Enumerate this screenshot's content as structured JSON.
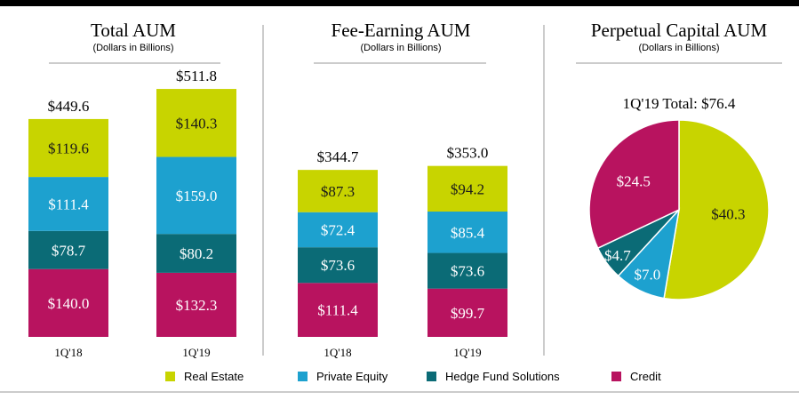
{
  "colors": {
    "real_estate": "#c8d400",
    "private_equity": "#1da1cf",
    "hedge_fund": "#0b6b76",
    "credit": "#b8135f",
    "divider": "#9a9a9a",
    "top_rule": "#000000"
  },
  "legend": [
    {
      "label": "Real Estate",
      "color_key": "real_estate"
    },
    {
      "label": "Private Equity",
      "color_key": "private_equity"
    },
    {
      "label": "Hedge Fund Solutions",
      "color_key": "hedge_fund"
    },
    {
      "label": "Credit",
      "color_key": "credit"
    }
  ],
  "chart_data": [
    {
      "type": "bar",
      "stacked": true,
      "title": "Total AUM",
      "subtitle": "(Dollars in Billions)",
      "categories": [
        "1Q'18",
        "1Q'19"
      ],
      "totals": [
        "$449.6",
        "$511.8"
      ],
      "series": [
        {
          "name": "Credit",
          "color_key": "credit",
          "values": [
            140.0,
            132.3
          ],
          "labels": [
            "$140.0",
            "$132.3"
          ]
        },
        {
          "name": "Hedge Fund Solutions",
          "color_key": "hedge_fund",
          "values": [
            78.7,
            80.2
          ],
          "labels": [
            "$78.7",
            "$80.2"
          ]
        },
        {
          "name": "Private Equity",
          "color_key": "private_equity",
          "values": [
            111.4,
            159.0
          ],
          "labels": [
            "$111.4",
            "$159.0"
          ]
        },
        {
          "name": "Real Estate",
          "color_key": "real_estate",
          "values": [
            119.6,
            140.3
          ],
          "labels": [
            "$119.6",
            "$140.3"
          ]
        }
      ]
    },
    {
      "type": "bar",
      "stacked": true,
      "title": "Fee-Earning AUM",
      "subtitle": "(Dollars in Billions)",
      "categories": [
        "1Q'18",
        "1Q'19"
      ],
      "totals": [
        "$344.7",
        "$353.0"
      ],
      "series": [
        {
          "name": "Credit",
          "color_key": "credit",
          "values": [
            111.4,
            99.7
          ],
          "labels": [
            "$111.4",
            "$99.7"
          ]
        },
        {
          "name": "Hedge Fund Solutions",
          "color_key": "hedge_fund",
          "values": [
            73.6,
            73.6
          ],
          "labels": [
            "$73.6",
            "$73.6"
          ]
        },
        {
          "name": "Private Equity",
          "color_key": "private_equity",
          "values": [
            72.4,
            85.4
          ],
          "labels": [
            "$72.4",
            "$85.4"
          ]
        },
        {
          "name": "Real Estate",
          "color_key": "real_estate",
          "values": [
            87.3,
            94.2
          ],
          "labels": [
            "$87.3",
            "$94.2"
          ]
        }
      ]
    },
    {
      "type": "pie",
      "title": "Perpetual Capital AUM",
      "subtitle": "(Dollars in Billions)",
      "total_label": "1Q'19 Total: $76.4",
      "slices": [
        {
          "name": "Real Estate",
          "color_key": "real_estate",
          "value": 40.3,
          "label": "$40.3"
        },
        {
          "name": "Private Equity",
          "color_key": "private_equity",
          "value": 7.0,
          "label": "$7.0"
        },
        {
          "name": "Hedge Fund Solutions",
          "color_key": "hedge_fund",
          "value": 4.7,
          "label": "$4.7"
        },
        {
          "name": "Credit",
          "color_key": "credit",
          "value": 24.5,
          "label": "$24.5"
        }
      ]
    }
  ]
}
